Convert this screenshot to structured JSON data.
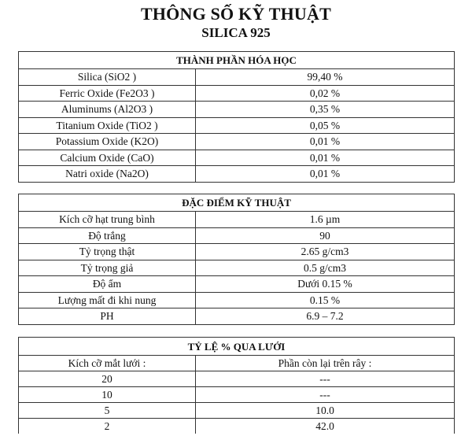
{
  "title": "THÔNG SỐ KỸ THUẬT",
  "subtitle": "SILICA 925",
  "chemical": {
    "header": "THÀNH PHẦN HÓA HỌC",
    "rows": [
      {
        "name": "Silica (SiO2 )",
        "value": "99,40 %"
      },
      {
        "name": "Ferric Oxide (Fe2O3 )",
        "value": "0,02 %"
      },
      {
        "name": "Aluminums (Al2O3 )",
        "value": "0,35 %"
      },
      {
        "name": "Titanium Oxide (TiO2 )",
        "value": "0,05 %"
      },
      {
        "name": "Potassium Oxide (K2O)",
        "value": "0,01 %"
      },
      {
        "name": "Calcium Oxide (CaO)",
        "value": "0,01 %"
      },
      {
        "name": "Natri oxide (Na2O)",
        "value": "0,01 %"
      }
    ]
  },
  "technical": {
    "header": "ĐẶC ĐIỂM KỸ THUẬT",
    "rows": [
      {
        "name": "Kích cỡ hạt trung bình",
        "value": "1.6 µm"
      },
      {
        "name": "Độ trắng",
        "value": "90"
      },
      {
        "name": "Tỷ trọng thật",
        "value": "2.65  g/cm3"
      },
      {
        "name": "Tỷ trọng giả",
        "value": "0.5  g/cm3"
      },
      {
        "name": "Độ ẩm",
        "value": "Dưới 0.15 %"
      },
      {
        "name": "Lượng mất đi khi nung",
        "value": "0.15 %"
      },
      {
        "name": "PH",
        "value": "6.9 – 7.2"
      }
    ]
  },
  "sieve": {
    "header": "TỶ LỆ % QUA LƯỚI",
    "col1": "Kích cỡ mắt lưới :",
    "col2": "Phần còn lại trên rây :",
    "rows": [
      {
        "name": "20",
        "value": "---"
      },
      {
        "name": "10",
        "value": "---"
      },
      {
        "name": "5",
        "value": "10.0"
      },
      {
        "name": "2",
        "value": "42.0"
      }
    ]
  }
}
